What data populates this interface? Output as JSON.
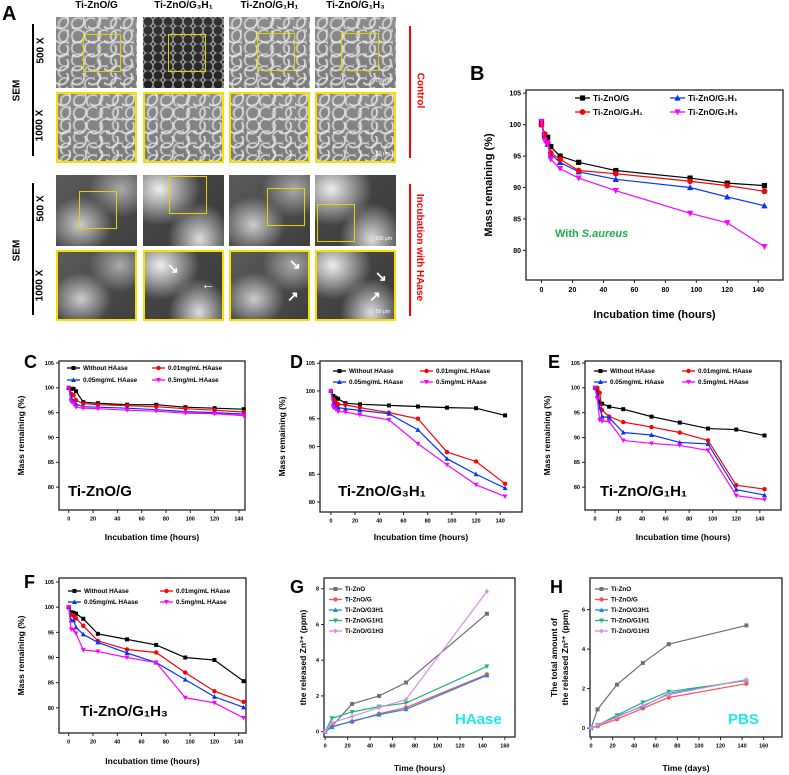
{
  "panel_a": {
    "letter": "A",
    "column_titles": [
      "Ti-ZnO/G",
      "Ti-ZnO/G₃H₁",
      "Ti-ZnO/G₁H₁",
      "Ti-ZnO/G₁H₃"
    ],
    "method_label": "SEM",
    "magnifications": [
      "500 X",
      "1000 X"
    ],
    "group_labels": [
      "Control",
      "Incubation with HAase"
    ],
    "scale_bars": [
      "100 μm",
      "50 μm"
    ],
    "colors": {
      "highlight": "#f5e100",
      "group_label": "#ff0000"
    }
  },
  "chart_data": [
    {
      "id": "B",
      "letter": "B",
      "type": "line",
      "xlabel": "Incubation time (hours)",
      "ylabel": "Mass remaining (%)",
      "xlim": [
        -10,
        156
      ],
      "ylim": [
        75.3,
        105.5
      ],
      "xticks": [
        0,
        20,
        40,
        60,
        80,
        100,
        120,
        140
      ],
      "yticks": [
        80,
        85,
        90,
        95,
        100,
        105
      ],
      "annotation": {
        "prefix": "With ",
        "italic": "S.aureus",
        "color": "#19b34a"
      },
      "x": [
        0,
        2,
        4,
        6,
        12,
        24,
        48,
        96,
        120,
        144
      ],
      "series": [
        {
          "name": "Ti-ZnO/G",
          "color": "#000000",
          "marker": "square",
          "values": [
            100.3,
            98.4,
            98.0,
            96.5,
            95.0,
            94.0,
            92.7,
            91.5,
            90.7,
            90.3
          ]
        },
        {
          "name": "Ti-ZnO/G₁H₁",
          "color": "#0033ff",
          "marker": "triangle-up",
          "values": [
            100.0,
            98.2,
            96.9,
            95.3,
            94.0,
            92.5,
            91.3,
            90.0,
            88.5,
            87.1
          ]
        },
        {
          "name": "Ti-ZnO/G₃H₁",
          "color": "#ff0000",
          "marker": "circle",
          "values": [
            100.0,
            98.5,
            97.2,
            95.5,
            94.5,
            92.7,
            92.2,
            91.0,
            90.3,
            89.4
          ]
        },
        {
          "name": "Ti-ZnO/G₁H₃",
          "color": "#ff00ff",
          "marker": "triangle-down",
          "values": [
            100.5,
            97.5,
            97.0,
            94.5,
            93.0,
            91.5,
            89.5,
            85.9,
            84.4,
            80.6
          ]
        }
      ]
    },
    {
      "id": "C",
      "letter": "C",
      "type": "line",
      "xlabel": "Incubation time (hours)",
      "ylabel": "Mass remaining (%)",
      "xlim": [
        -8,
        145
      ],
      "ylim": [
        75.4,
        105.4
      ],
      "xticks": [
        0,
        20,
        40,
        60,
        80,
        100,
        120,
        140
      ],
      "yticks": [
        80,
        85,
        90,
        95,
        100,
        105
      ],
      "annotation": {
        "text": "Ti-ZnO/G",
        "color": "#000000"
      },
      "x": [
        0,
        2,
        4,
        6,
        12,
        24,
        48,
        72,
        96,
        120,
        144
      ],
      "series": [
        {
          "name": "Without HAase",
          "color": "#000000",
          "marker": "square",
          "values": [
            100,
            99.8,
            99.8,
            99.3,
            97.1,
            96.9,
            96.6,
            96.6,
            96.1,
            95.9,
            95.7
          ]
        },
        {
          "name": "0.01mg/mL HAase",
          "color": "#ff0000",
          "marker": "circle",
          "values": [
            100,
            98.8,
            98.5,
            97.5,
            96.8,
            96.6,
            96.4,
            96.2,
            95.8,
            95.5,
            95.1
          ]
        },
        {
          "name": "0.05mg/mL HAase",
          "color": "#0033ff",
          "marker": "triangle-up",
          "values": [
            100,
            98.0,
            97.3,
            96.7,
            96.2,
            96.1,
            95.9,
            95.6,
            95.2,
            95.0,
            94.7
          ]
        },
        {
          "name": "0.5mg/mL HAase",
          "color": "#ff00ff",
          "marker": "triangle-down",
          "values": [
            100,
            97.2,
            96.8,
            96.1,
            95.9,
            95.8,
            95.5,
            95.3,
            94.9,
            94.8,
            94.4
          ]
        }
      ]
    },
    {
      "id": "D",
      "letter": "D",
      "type": "line",
      "xlabel": "Incubation time (hours)",
      "ylabel": "Mass remaining (%)",
      "xlim": [
        -9,
        158
      ],
      "ylim": [
        78.2,
        105.4
      ],
      "xticks": [
        0,
        20,
        40,
        60,
        80,
        100,
        120,
        140
      ],
      "yticks": [
        80,
        85,
        90,
        95,
        100,
        105
      ],
      "annotation": {
        "text": "Ti-ZnO/G₃H₁",
        "color": "#000000"
      },
      "x": [
        0,
        2,
        4,
        6,
        12,
        24,
        48,
        72,
        96,
        120,
        144
      ],
      "series": [
        {
          "name": "Without HAase",
          "color": "#000000",
          "marker": "square",
          "values": [
            100,
            99.1,
            98.8,
            98.6,
            97.8,
            97.6,
            97.4,
            97.2,
            97.0,
            96.9,
            95.6
          ]
        },
        {
          "name": "0.01mg/mL HAase",
          "color": "#ff0000",
          "marker": "circle",
          "values": [
            100,
            98.5,
            98.0,
            97.6,
            97.5,
            97.0,
            96.1,
            95.0,
            89.0,
            87.3,
            83.3
          ]
        },
        {
          "name": "0.05mg/mL HAase",
          "color": "#0033ff",
          "marker": "triangle-up",
          "values": [
            100,
            97.8,
            97.2,
            97.0,
            96.8,
            96.5,
            95.9,
            93.0,
            87.8,
            85.0,
            82.5
          ]
        },
        {
          "name": "0.5mg/mL HAase",
          "color": "#ff00ff",
          "marker": "triangle-down",
          "values": [
            100,
            97.0,
            96.7,
            96.3,
            96.2,
            95.7,
            94.8,
            90.5,
            86.7,
            83.1,
            81.0
          ]
        }
      ]
    },
    {
      "id": "E",
      "letter": "E",
      "type": "line",
      "xlabel": "Incubation time (hours)",
      "ylabel": "Mass remaining (%)",
      "xlim": [
        -8.5,
        158
      ],
      "ylim": [
        75.4,
        105.4
      ],
      "xticks": [
        0,
        20,
        40,
        60,
        80,
        100,
        120,
        140
      ],
      "yticks": [
        80,
        85,
        90,
        95,
        100,
        105
      ],
      "annotation": {
        "text": "Ti-ZnO/G₁H₁",
        "color": "#000000"
      },
      "x": [
        0,
        2,
        4,
        6,
        12,
        24,
        48,
        72,
        96,
        120,
        144
      ],
      "series": [
        {
          "name": "Without HAase",
          "color": "#000000",
          "marker": "square",
          "values": [
            100,
            99.3,
            97.0,
            96.8,
            96.2,
            95.7,
            94.2,
            93.0,
            91.8,
            91.6,
            90.4
          ]
        },
        {
          "name": "0.01mg/mL HAase",
          "color": "#ff0000",
          "marker": "circle",
          "values": [
            100,
            100,
            99.0,
            95.5,
            94.2,
            93.1,
            92.1,
            91.0,
            89.4,
            80.4,
            79.6
          ]
        },
        {
          "name": "0.05mg/mL HAase",
          "color": "#0033ff",
          "marker": "triangle-up",
          "values": [
            100,
            98.5,
            96.0,
            94.2,
            94.0,
            91.0,
            90.5,
            89.0,
            88.7,
            79.5,
            78.4
          ]
        },
        {
          "name": "0.5mg/mL HAase",
          "color": "#ff00ff",
          "marker": "triangle-down",
          "values": [
            100,
            97.8,
            93.5,
            93.3,
            93.2,
            89.4,
            88.8,
            88.4,
            87.4,
            78.3,
            77.5
          ]
        }
      ]
    },
    {
      "id": "F",
      "letter": "F",
      "type": "line",
      "xlabel": "Incubation time (hours)",
      "ylabel": "Mass remaining (%)",
      "xlim": [
        -8,
        146
      ],
      "ylim": [
        75,
        105.8
      ],
      "xticks": [
        0,
        20,
        40,
        60,
        80,
        100,
        120,
        140
      ],
      "yticks": [
        80,
        85,
        90,
        95,
        100,
        105
      ],
      "annotation": {
        "text": "Ti-ZnO/G₁H₃",
        "color": "#000000"
      },
      "x": [
        0,
        2,
        4,
        6,
        12,
        24,
        48,
        72,
        96,
        120,
        144
      ],
      "series": [
        {
          "name": "Without HAase",
          "color": "#000000",
          "marker": "square",
          "values": [
            100,
            99.0,
            98.9,
            98.7,
            97.7,
            94.7,
            93.6,
            92.5,
            90.0,
            89.5,
            85.3
          ]
        },
        {
          "name": "0.01mg/mL HAase",
          "color": "#ff0000",
          "marker": "circle",
          "values": [
            100,
            98.5,
            98.3,
            97.8,
            96.3,
            93.3,
            91.6,
            91.0,
            87.0,
            83.3,
            81.2
          ]
        },
        {
          "name": "0.05mg/mL HAase",
          "color": "#0033ff",
          "marker": "triangle-up",
          "values": [
            100,
            97.4,
            97.4,
            96.0,
            94.6,
            93.0,
            90.9,
            89.0,
            85.6,
            82.2,
            80.1
          ]
        },
        {
          "name": "0.5mg/mL HAase",
          "color": "#ff00ff",
          "marker": "triangle-down",
          "values": [
            100,
            95.6,
            95.5,
            94.8,
            91.5,
            91.2,
            90.0,
            89.0,
            82.0,
            81.0,
            78.0
          ]
        }
      ]
    },
    {
      "id": "G",
      "letter": "G",
      "type": "line",
      "xlabel": "Time (hours)",
      "ylabel": "the released Zn²⁺ (ppm)",
      "xlim": [
        -1,
        169
      ],
      "ylim": [
        -0.3,
        8.6
      ],
      "xticks": [
        0,
        20,
        40,
        60,
        80,
        100,
        120,
        140,
        160
      ],
      "yticks": [
        0,
        2,
        4,
        6,
        8
      ],
      "annotation": {
        "text": "HAase",
        "color": "#1ee8f0"
      },
      "x": [
        0,
        6,
        24,
        48,
        72,
        144
      ],
      "series": [
        {
          "name": "Ti-ZnO",
          "color": "#707070",
          "marker": "square",
          "values": [
            0,
            0.3,
            1.55,
            2.0,
            2.75,
            6.6
          ]
        },
        {
          "name": "Ti-ZnO/G",
          "color": "#ff5050",
          "marker": "circle",
          "values": [
            0,
            0.3,
            0.55,
            1.0,
            1.35,
            3.2
          ]
        },
        {
          "name": "Ti-ZnO/G3H1",
          "color": "#1e88e5",
          "marker": "triangle-up",
          "values": [
            0,
            0.25,
            0.6,
            0.95,
            1.25,
            3.15
          ]
        },
        {
          "name": "Ti-ZnO/G1H1",
          "color": "#1fb47a",
          "marker": "triangle-down",
          "values": [
            0,
            0.75,
            1.1,
            1.4,
            1.6,
            3.65
          ]
        },
        {
          "name": "Ti-ZnO/G1H3",
          "color": "#d98ce6",
          "marker": "diamond",
          "values": [
            0,
            0.5,
            0.85,
            1.35,
            1.8,
            7.85
          ]
        }
      ]
    },
    {
      "id": "H",
      "letter": "H",
      "type": "line",
      "xlabel": "Time (days)",
      "ylabel": "The total amount of",
      "ylabel2": "the released Zn²⁺ (ppm)",
      "xlim": [
        -1,
        177
      ],
      "ylim": [
        -0.45,
        7.6
      ],
      "xticks": [
        0,
        20,
        40,
        60,
        80,
        100,
        120,
        140,
        160
      ],
      "yticks": [
        0,
        2,
        4,
        6
      ],
      "annotation": {
        "text": "PBS",
        "color": "#1ee8f0"
      },
      "x": [
        0,
        6,
        24,
        48,
        72,
        144
      ],
      "series": [
        {
          "name": "Ti-ZnO",
          "color": "#707070",
          "marker": "square",
          "values": [
            0,
            0.95,
            2.2,
            3.3,
            4.25,
            5.2
          ]
        },
        {
          "name": "Ti-ZnO/G",
          "color": "#ff5050",
          "marker": "circle",
          "values": [
            0,
            0.1,
            0.45,
            1.0,
            1.55,
            2.25
          ]
        },
        {
          "name": "Ti-ZnO/G3H1",
          "color": "#1e88e5",
          "marker": "triangle-up",
          "values": [
            0,
            0.15,
            0.6,
            1.1,
            1.75,
            2.45
          ]
        },
        {
          "name": "Ti-ZnO/G1H1",
          "color": "#1fb47a",
          "marker": "triangle-down",
          "values": [
            0,
            0.15,
            0.65,
            1.3,
            1.85,
            2.4
          ]
        },
        {
          "name": "Ti-ZnO/G1H3",
          "color": "#d98ce6",
          "marker": "diamond",
          "values": [
            0,
            0.15,
            0.55,
            1.15,
            1.7,
            2.45
          ]
        }
      ]
    }
  ]
}
